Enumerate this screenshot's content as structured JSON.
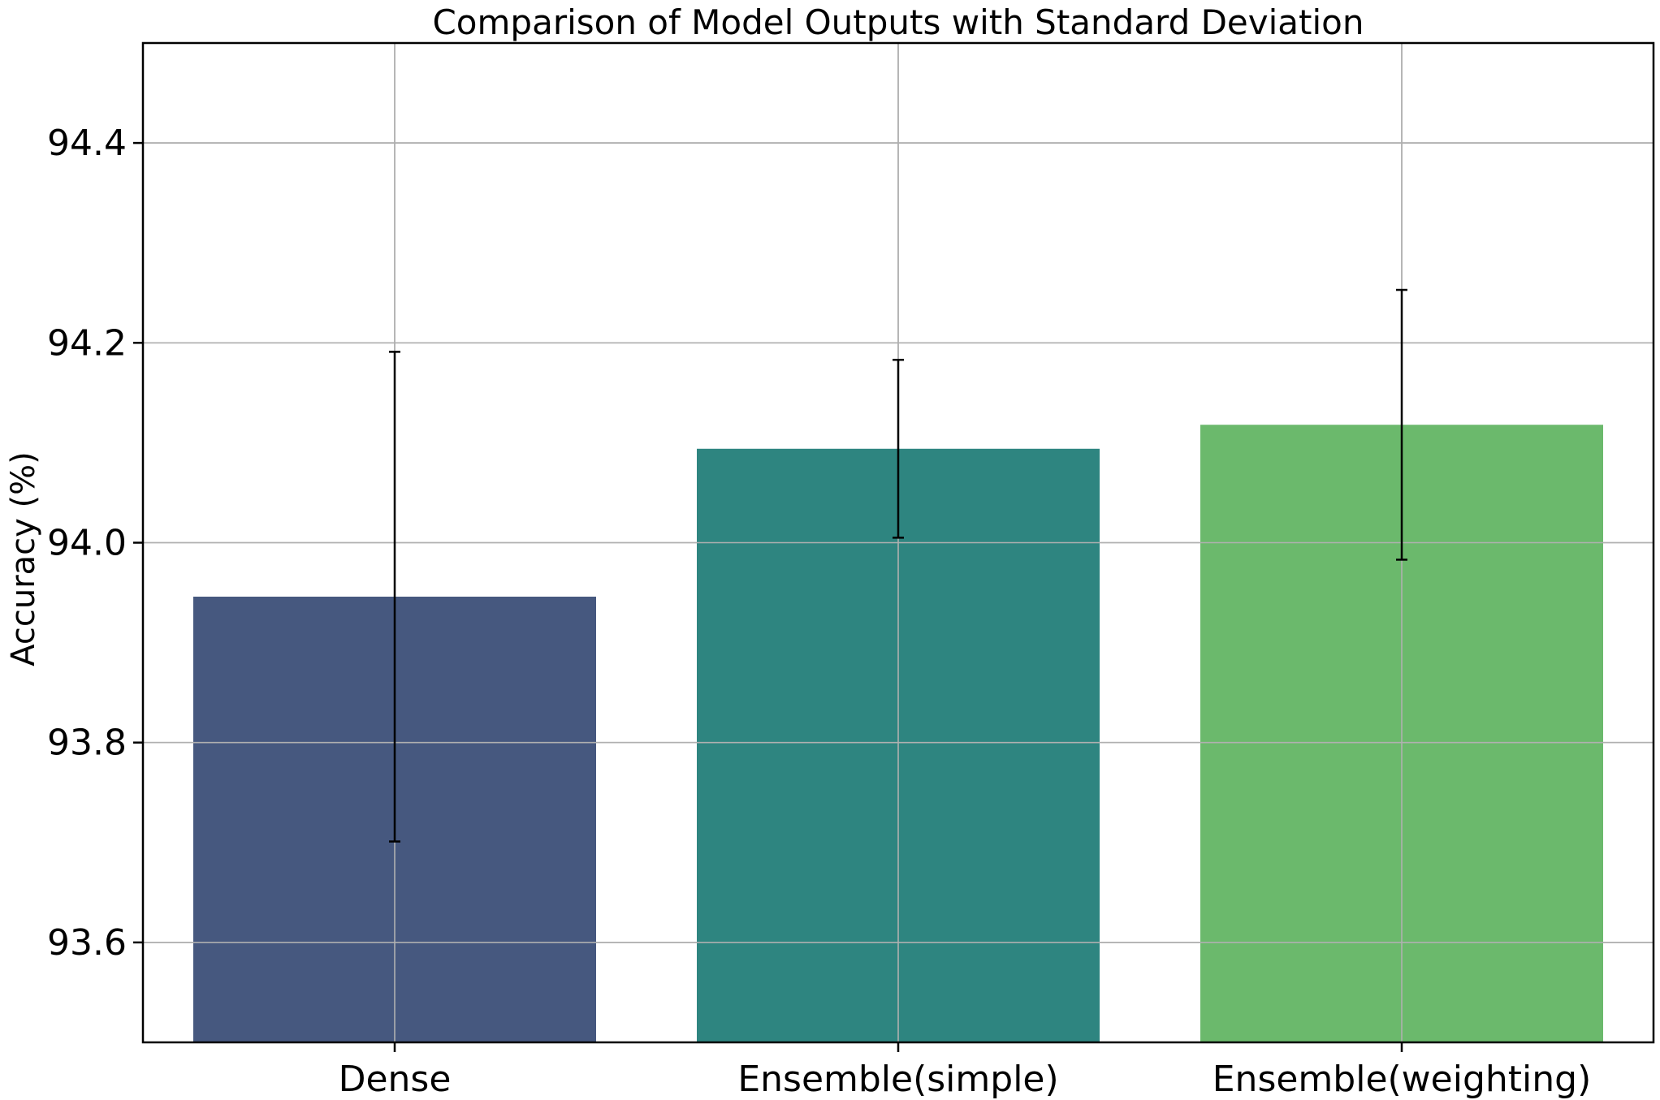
{
  "chart_data": {
    "type": "bar",
    "title": "Comparison of Model Outputs with Standard Deviation",
    "xlabel": "",
    "ylabel": "Accuracy (%)",
    "categories": [
      "Dense",
      "Ensemble(simple)",
      "Ensemble(weighting)"
    ],
    "values": [
      93.946,
      94.094,
      94.118
    ],
    "errors": [
      0.245,
      0.089,
      0.135
    ],
    "colors": [
      "#46587f",
      "#2e8580",
      "#6bb96c"
    ],
    "ylim": [
      93.5,
      94.5
    ],
    "yticks": [
      93.6,
      93.8,
      94.0,
      94.2,
      94.4
    ],
    "ytick_labels": [
      "93.6",
      "93.8",
      "94.0",
      "94.2",
      "94.4"
    ],
    "grid": true,
    "legend": "none"
  }
}
